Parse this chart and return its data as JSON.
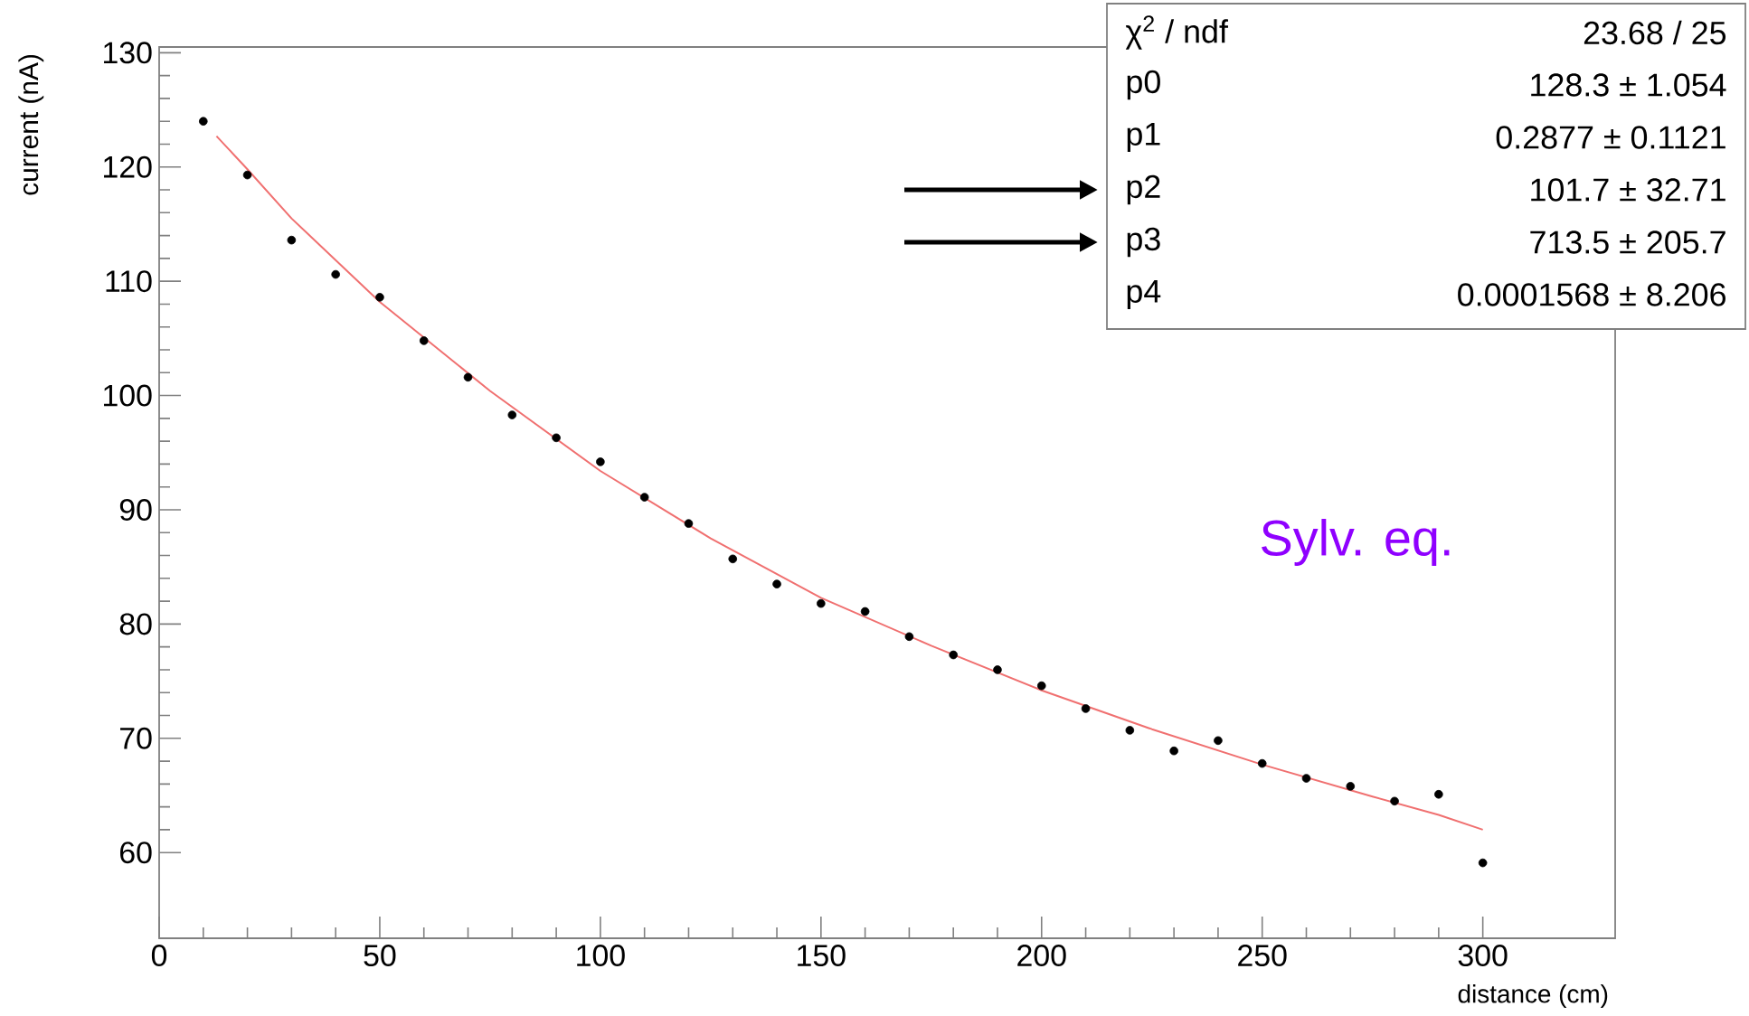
{
  "chart_data": {
    "type": "scatter",
    "xlabel": "distance (cm)",
    "ylabel": "current (nA)",
    "xlim": [
      0,
      330
    ],
    "ylim": [
      52.5,
      130.5
    ],
    "xticks": [
      0,
      50,
      100,
      150,
      200,
      250,
      300
    ],
    "yticks": [
      60,
      70,
      80,
      90,
      100,
      110,
      120,
      130
    ],
    "marker": "circle",
    "grid": false,
    "series": [
      {
        "color": "#000000",
        "x": [
          10,
          20,
          30,
          40,
          50,
          60,
          70,
          80,
          90,
          100,
          110,
          120,
          130,
          140,
          150,
          160,
          170,
          180,
          190,
          200,
          210,
          220,
          230,
          240,
          250,
          260,
          270,
          280,
          290,
          300
        ],
        "values": [
          124.0,
          119.3,
          113.6,
          110.6,
          108.6,
          104.8,
          101.6,
          98.3,
          96.3,
          94.2,
          91.1,
          88.8,
          85.7,
          83.5,
          81.8,
          81.1,
          78.9,
          77.3,
          76.0,
          74.6,
          72.6,
          70.7,
          68.9,
          69.8,
          67.8,
          66.5,
          65.8,
          64.5,
          65.1,
          59.1
        ]
      },
      {
        "type": "line",
        "color": "#f07070",
        "marker": "none",
        "line_style": "solid",
        "x": [
          13,
          20,
          30,
          50,
          75,
          100,
          125,
          150,
          175,
          200,
          225,
          250,
          275,
          290,
          300
        ],
        "values": [
          122.7,
          119.8,
          115.5,
          108.2,
          100.4,
          93.4,
          87.5,
          82.3,
          78.1,
          74.2,
          70.8,
          67.7,
          64.9,
          63.3,
          62.0
        ]
      }
    ],
    "annotations": [
      "χ$^{2}$ / ndf",
      "23.68 / 25",
      "p0",
      "128.3 ± 1.054",
      "p1",
      "0.2877 ± 0.1121",
      "p2",
      "101.7 ± 32.71",
      "p3",
      "713.5 ± 205.7",
      "p4",
      "0.0001568 ± 8.206",
      "Sylv. eq."
    ]
  }
}
